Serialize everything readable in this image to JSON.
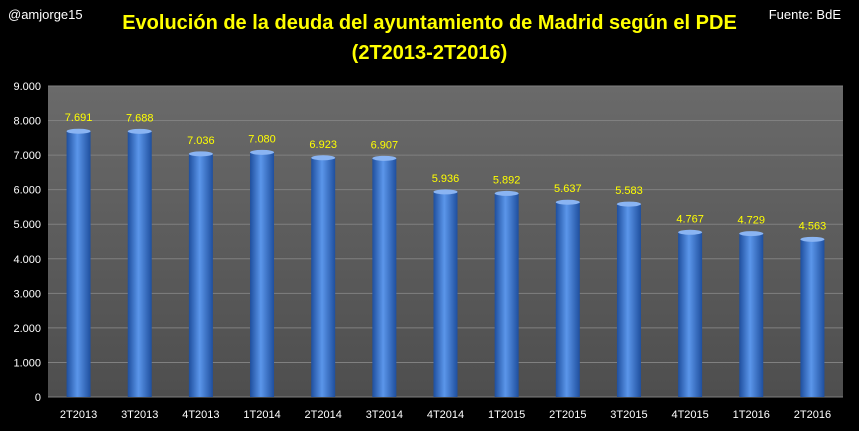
{
  "header": {
    "author": "@amjorge15",
    "source": "Fuente: BdE"
  },
  "chart_data": {
    "type": "bar",
    "title": "Evolución de la deuda del ayuntamiento de Madrid según el PDE",
    "subtitle": "(2T2013-2T2016)",
    "xlabel": "",
    "ylabel": "",
    "ylim": [
      0,
      9000
    ],
    "yticks": [
      0,
      1000,
      2000,
      3000,
      4000,
      5000,
      6000,
      7000,
      8000,
      9000
    ],
    "ytick_labels": [
      "0",
      "1.000",
      "2.000",
      "3.000",
      "4.000",
      "5.000",
      "6.000",
      "7.000",
      "8.000",
      "9.000"
    ],
    "grid": true,
    "legend": "none",
    "categories": [
      "2T2013",
      "3T2013",
      "4T2013",
      "1T2014",
      "2T2014",
      "3T2014",
      "4T2014",
      "1T2015",
      "2T2015",
      "3T2015",
      "4T2015",
      "1T2016",
      "2T2016"
    ],
    "values": [
      7691,
      7688,
      7036,
      7080,
      6923,
      6907,
      5936,
      5892,
      5637,
      5583,
      4767,
      4729,
      4563
    ],
    "value_labels": [
      "7.691",
      "7.688",
      "7.036",
      "7.080",
      "6.923",
      "6.907",
      "5.936",
      "5.892",
      "5.637",
      "5.583",
      "4.767",
      "4.729",
      "4.563"
    ],
    "colors": {
      "bar": "#3b78d4",
      "plot_background": "#595959",
      "gridline": "#808080",
      "title": "#ffff00",
      "data_label": "#ffff00",
      "tick_label": "#ffffff"
    }
  }
}
